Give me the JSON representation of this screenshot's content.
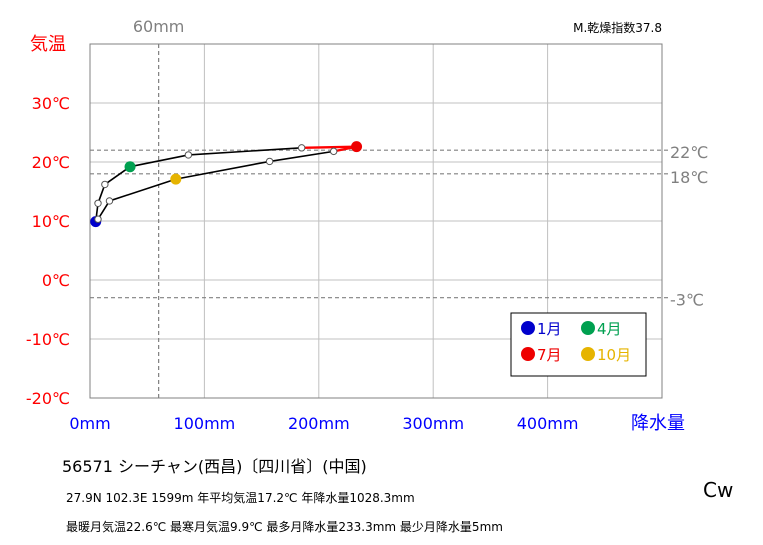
{
  "chart_data": {
    "type": "line",
    "title": "",
    "index_label": "M.乾燥指数37.8",
    "xlabel": "降水量",
    "ylabel": "気温",
    "xlim": [
      0,
      500
    ],
    "ylim": [
      -20,
      40
    ],
    "x_ticks": [
      {
        "value": 0,
        "label": "0mm"
      },
      {
        "value": 100,
        "label": "100mm"
      },
      {
        "value": 200,
        "label": "200mm"
      },
      {
        "value": 300,
        "label": "300mm"
      },
      {
        "value": 400,
        "label": "400mm"
      }
    ],
    "y_ticks": [
      {
        "value": 30,
        "label": "30℃"
      },
      {
        "value": 20,
        "label": "20℃"
      },
      {
        "value": 10,
        "label": "10℃"
      },
      {
        "value": 0,
        "label": "0℃"
      },
      {
        "value": -10,
        "label": "-10℃"
      },
      {
        "value": -20,
        "label": "-20℃"
      }
    ],
    "reference_lines": [
      {
        "axis": "x",
        "value": 60,
        "label": "60mm"
      },
      {
        "axis": "y",
        "value": 22,
        "label": "22℃"
      },
      {
        "axis": "y",
        "value": 18,
        "label": "18℃"
      },
      {
        "axis": "y",
        "value": -3,
        "label": "-3℃"
      }
    ],
    "series": [
      {
        "months": [
          1,
          2,
          3,
          4,
          5,
          6,
          7,
          8,
          9,
          10,
          11,
          12
        ],
        "precipitation_mm": [
          5,
          7,
          13,
          35,
          86,
          185,
          233,
          213,
          157,
          75,
          17,
          7
        ],
        "temperature_c": [
          9.9,
          13,
          16.2,
          19.2,
          21.2,
          22.4,
          22.6,
          21.8,
          20.1,
          17.1,
          13.4,
          10.3
        ]
      }
    ],
    "highlight_points": [
      {
        "month": 1,
        "label": "1月",
        "color": "#0000cc"
      },
      {
        "month": 4,
        "label": "4月",
        "color": "#00a050"
      },
      {
        "month": 7,
        "label": "7月",
        "color": "#ee0000"
      },
      {
        "month": 10,
        "label": "10月",
        "color": "#e6b400"
      }
    ],
    "legend_position": "bottom-right",
    "grid": true,
    "colors": {
      "temperature_axis": "#ff0000",
      "precipitation_axis": "#0000ff",
      "reference": "#808080",
      "line": "#000000",
      "summer_segment": "#ff0000"
    },
    "climate_class": "Cw"
  },
  "station": {
    "name_line": "56571 シーチャン(西昌)〔四川省〕(中国)",
    "stats_line1": "27.9N 102.3E 1599m 年平均気温17.2℃ 年降水量1028.3mm",
    "stats_line2": "最暖月気温22.6℃ 最寒月気温9.9℃ 最多月降水量233.3mm 最少月降水量5mm"
  }
}
